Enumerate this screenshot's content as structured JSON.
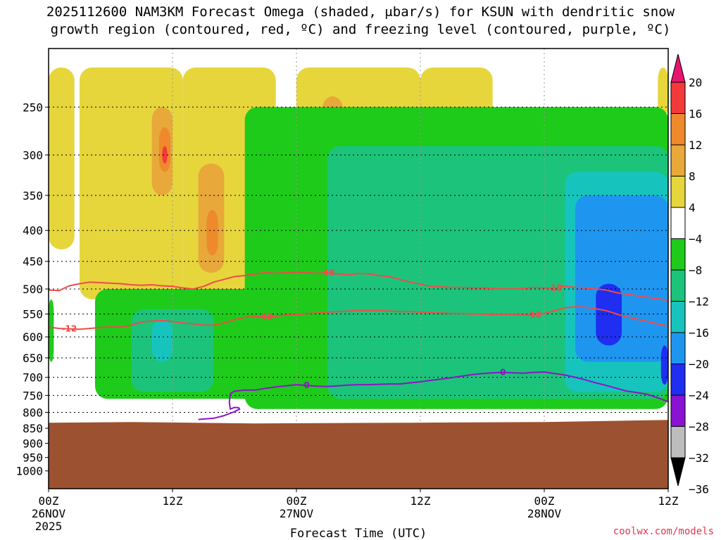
{
  "title": {
    "line1": "2025112600 NAM3KM Forecast Omega (shaded, μbar/s) for KSUN with dendritic snow",
    "line2": "growth region (contoured, red, ºC) and freezing level (contoured, purple, ºC)"
  },
  "credit": "coolwx.com/models",
  "chart_data": {
    "type": "heatmap",
    "title": "2025112600 NAM3KM Forecast Omega (shaded, μbar/s) for KSUN with dendritic snow growth region (contoured, red, ºC) and freezing level (contoured, purple, ºC)",
    "xlabel": "Forecast Time (UTC)",
    "ylabel": "",
    "x_range_hours": [
      0,
      60
    ],
    "x_ticks": [
      {
        "hour": 0,
        "label": "00Z",
        "sub": "26NOV",
        "sub2": "2025"
      },
      {
        "hour": 12,
        "label": "12Z",
        "sub": "",
        "sub2": ""
      },
      {
        "hour": 24,
        "label": "00Z",
        "sub": "27NOV",
        "sub2": ""
      },
      {
        "hour": 36,
        "label": "12Z",
        "sub": "",
        "sub2": ""
      },
      {
        "hour": 48,
        "label": "00Z",
        "sub": "28NOV",
        "sub2": ""
      },
      {
        "hour": 60,
        "label": "12Z",
        "sub": "",
        "sub2": ""
      }
    ],
    "y_axis": "log-pressure (hPa), inverted",
    "y_range_hpa": [
      200,
      1070
    ],
    "y_ticks": [
      250,
      300,
      350,
      400,
      450,
      500,
      550,
      600,
      650,
      700,
      750,
      800,
      850,
      900,
      950,
      1000
    ],
    "grid": true,
    "colorbar": {
      "units": "μbar/s",
      "labels": [
        "20",
        "16",
        "12",
        "8",
        "4",
        "−4",
        "−8",
        "−12",
        "−16",
        "−20",
        "−24",
        "−28",
        "−32",
        "−36"
      ],
      "colors": [
        "#e8156f",
        "#f23a3a",
        "#ee8a2b",
        "#e8a83a",
        "#e6d63c",
        "#ffffff",
        "#1ecb1a",
        "#1bc47a",
        "#16c4bd",
        "#1e96f0",
        "#1f2ef0",
        "#8a12d2",
        "#bdbdbd",
        "#000000"
      ]
    },
    "terrain_color": "#9c5230",
    "terrain_top_hpa": 830,
    "omega_regions": [
      {
        "level": "4-8",
        "color": "#e6d63c",
        "hours": [
          0,
          2.5
        ],
        "hpa": [
          215,
          430
        ]
      },
      {
        "level": "4-8",
        "color": "#e6d63c",
        "hours": [
          3,
          13
        ],
        "hpa": [
          215,
          520
        ]
      },
      {
        "level": "4-8",
        "color": "#e6d63c",
        "hours": [
          13,
          22
        ],
        "hpa": [
          215,
          610
        ]
      },
      {
        "level": "4-8",
        "color": "#e6d63c",
        "hours": [
          24,
          36
        ],
        "hpa": [
          215,
          510
        ]
      },
      {
        "level": "4-8",
        "color": "#e6d63c",
        "hours": [
          36,
          43
        ],
        "hpa": [
          215,
          380
        ]
      },
      {
        "level": "4-8",
        "color": "#e6d63c",
        "hours": [
          59,
          60
        ],
        "hpa": [
          215,
          260
        ]
      },
      {
        "level": "8-12",
        "color": "#e8a83a",
        "hours": [
          10,
          12
        ],
        "hpa": [
          250,
          350
        ]
      },
      {
        "level": "8-12",
        "color": "#e8a83a",
        "hours": [
          14.5,
          17
        ],
        "hpa": [
          310,
          470
        ]
      },
      {
        "level": "8-12",
        "color": "#e8a83a",
        "hours": [
          24,
          29
        ],
        "hpa": [
          330,
          500
        ]
      },
      {
        "level": "8-12",
        "color": "#e8a83a",
        "hours": [
          26.5,
          28.5
        ],
        "hpa": [
          240,
          330
        ]
      },
      {
        "level": "12-16",
        "color": "#ee8a2b",
        "hours": [
          10.7,
          11.8
        ],
        "hpa": [
          270,
          320
        ]
      },
      {
        "level": "12-16",
        "color": "#ee8a2b",
        "hours": [
          15.3,
          16.4
        ],
        "hpa": [
          370,
          440
        ]
      },
      {
        "level": "16-20",
        "color": "#f23a3a",
        "hours": [
          11,
          11.5
        ],
        "hpa": [
          290,
          310
        ]
      },
      {
        "level": "-4--8",
        "color": "#1ecb1a",
        "hours": [
          0,
          0.5
        ],
        "hpa": [
          520,
          660
        ]
      },
      {
        "level": "-4--8",
        "color": "#1ecb1a",
        "hours": [
          4.5,
          21
        ],
        "hpa": [
          500,
          760
        ]
      },
      {
        "level": "-4--8",
        "color": "#1ecb1a",
        "hours": [
          19,
          60
        ],
        "hpa": [
          250,
          790
        ]
      },
      {
        "level": "-8--12",
        "color": "#1bc47a",
        "hours": [
          8,
          16
        ],
        "hpa": [
          540,
          740
        ]
      },
      {
        "level": "-8--12",
        "color": "#1bc47a",
        "hours": [
          27,
          60
        ],
        "hpa": [
          290,
          760
        ]
      },
      {
        "level": "-12--16",
        "color": "#16c4bd",
        "hours": [
          10,
          12
        ],
        "hpa": [
          560,
          660
        ]
      },
      {
        "level": "-12--16",
        "color": "#16c4bd",
        "hours": [
          50,
          60
        ],
        "hpa": [
          320,
          740
        ]
      },
      {
        "level": "-16--20",
        "color": "#1e96f0",
        "hours": [
          51,
          60
        ],
        "hpa": [
          350,
          660
        ]
      },
      {
        "level": "-20--24",
        "color": "#1f2ef0",
        "hours": [
          53,
          55.5
        ],
        "hpa": [
          490,
          620
        ]
      },
      {
        "level": "-20--24",
        "color": "#1f2ef0",
        "hours": [
          59.3,
          60
        ],
        "hpa": [
          620,
          720
        ]
      }
    ],
    "contours": [
      {
        "name": "-18",
        "color": "#f24a4a",
        "label": "-18",
        "hours": [
          0,
          1,
          2,
          3,
          4,
          5,
          6,
          7,
          8,
          9,
          10,
          11,
          12,
          13,
          14,
          15,
          16,
          17,
          18,
          19,
          20,
          21,
          22,
          23,
          24,
          25,
          26,
          27,
          28,
          29,
          30,
          31,
          32,
          33,
          34,
          35,
          36,
          37,
          38,
          39,
          40,
          41,
          42,
          43,
          44,
          45,
          46,
          47,
          48,
          49,
          50,
          51,
          52,
          53,
          54,
          55,
          56,
          57,
          58,
          59,
          60
        ],
        "hpa": [
          502,
          503,
          494,
          490,
          487,
          488,
          489,
          490,
          492,
          493,
          492,
          494,
          495,
          498,
          500,
          495,
          487,
          482,
          477,
          475,
          472,
          470,
          471,
          470,
          469,
          470,
          471,
          470,
          472,
          474,
          471,
          472,
          475,
          477,
          482,
          487,
          491,
          495,
          496,
          497,
          497,
          498,
          498,
          499,
          500,
          500,
          499,
          497,
          498,
          498,
          495,
          497,
          498,
          500,
          502,
          507,
          510,
          513,
          516,
          519,
          522
        ],
        "label_hours": [
          27,
          49
        ]
      },
      {
        "name": "-12",
        "color": "#f24a4a",
        "label": "-12",
        "hours": [
          0,
          1,
          2,
          3,
          4,
          5,
          6,
          7,
          8,
          9,
          10,
          11,
          12,
          13,
          14,
          15,
          16,
          17,
          18,
          19,
          20,
          21,
          22,
          23,
          24,
          25,
          26,
          27,
          28,
          29,
          30,
          31,
          32,
          33,
          34,
          35,
          36,
          37,
          38,
          39,
          40,
          41,
          42,
          43,
          44,
          45,
          46,
          47,
          48,
          49,
          50,
          51,
          52,
          53,
          54,
          55,
          56,
          57,
          58,
          59,
          60
        ],
        "hpa": [
          578,
          581,
          582,
          583,
          581,
          579,
          578,
          578,
          574,
          567,
          565,
          564,
          566,
          569,
          571,
          574,
          574,
          569,
          562,
          557,
          555,
          556,
          555,
          552,
          551,
          549,
          548,
          546,
          545,
          544,
          543,
          543,
          543,
          544,
          545,
          545,
          546,
          547,
          548,
          549,
          549,
          550,
          550,
          551,
          551,
          551,
          552,
          552,
          549,
          543,
          537,
          535,
          536,
          539,
          543,
          550,
          556,
          561,
          566,
          571,
          576
        ],
        "label_hours": [
          2.5,
          21.5,
          47
        ]
      },
      {
        "name": "0",
        "color": "#8e14c8",
        "label": "0",
        "hours": [
          14.5,
          16,
          17,
          18,
          18.5,
          18.4,
          18,
          17.6,
          17.5,
          17.6,
          18,
          19,
          20,
          21,
          22,
          23,
          24,
          25,
          26,
          27,
          28,
          29,
          30,
          31,
          32,
          33,
          34,
          35,
          36,
          37,
          38,
          39,
          40,
          41,
          42,
          43,
          44,
          45,
          46,
          47,
          48,
          49,
          50,
          51,
          52,
          53,
          54,
          55,
          56,
          57,
          58,
          59,
          60
        ],
        "hpa": [
          822,
          818,
          810,
          798,
          790,
          786,
          785,
          790,
          770,
          745,
          738,
          735,
          735,
          730,
          726,
          723,
          720,
          722,
          724,
          725,
          723,
          721,
          720,
          720,
          719,
          718,
          718,
          715,
          712,
          708,
          705,
          701,
          697,
          693,
          690,
          688,
          687,
          688,
          689,
          687,
          686,
          690,
          694,
          700,
          707,
          715,
          722,
          730,
          738,
          742,
          747,
          757,
          768
        ],
        "label_hours": [
          25,
          44.5
        ]
      }
    ]
  }
}
